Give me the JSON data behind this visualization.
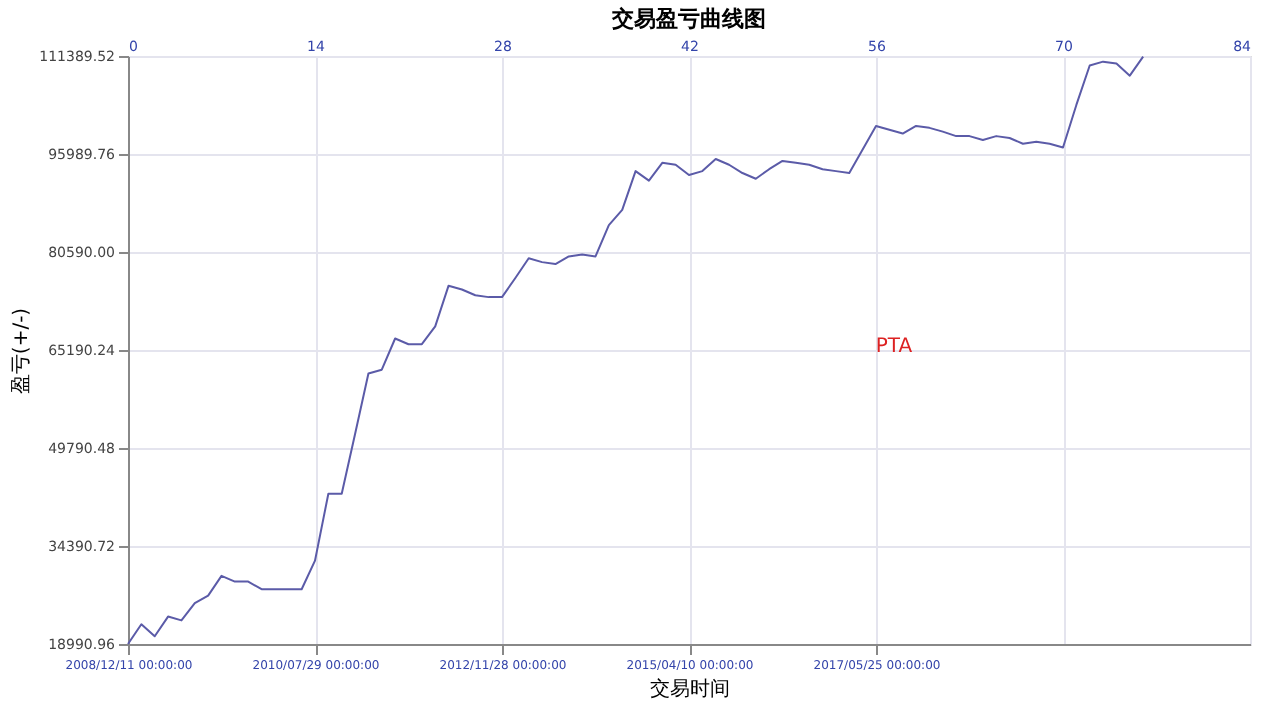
{
  "chart_data": {
    "type": "line",
    "title": "交易盈亏曲线图",
    "xlabel": "交易时间",
    "ylabel": "盈亏(+/-)",
    "categories": [
      "2008/12/11 00:00:00",
      null,
      null,
      null,
      null,
      null,
      null,
      null,
      null,
      null,
      null,
      null,
      null,
      null,
      "2010/07/29 00:00:00",
      null,
      null,
      null,
      null,
      null,
      null,
      null,
      null,
      null,
      null,
      null,
      null,
      null,
      "2012/11/28 00:00:00",
      null,
      null,
      null,
      null,
      null,
      null,
      null,
      null,
      null,
      null,
      null,
      null,
      null,
      "2015/04/10 00:00:00",
      null,
      null,
      null,
      null,
      null,
      null,
      null,
      null,
      null,
      null,
      null,
      null,
      null,
      "2017/05/25 00:00:00",
      null,
      null,
      null,
      null,
      null,
      null,
      null,
      null,
      null,
      null,
      null,
      null,
      null,
      null,
      null,
      null,
      null,
      null,
      null,
      null,
      null,
      null,
      null,
      null,
      null,
      null,
      null,
      null
    ],
    "series": [
      {
        "color": "#5b5ba8",
        "values": [
          19000,
          22100,
          20200,
          23300,
          22700,
          25400,
          26600,
          29700,
          28800,
          28800,
          27600,
          27600,
          27600,
          27600,
          32100,
          42600,
          42600,
          52000,
          61500,
          62100,
          67000,
          66100,
          66100,
          68900,
          75300,
          74700,
          73800,
          73500,
          73500,
          76500,
          79600,
          79000,
          78700,
          79900,
          80200,
          79900,
          84800,
          87200,
          93300,
          91800,
          94600,
          94300,
          92700,
          93300,
          95200,
          94300,
          93000,
          92100,
          93600,
          94900,
          94600,
          94300,
          93600,
          93300,
          93000,
          96700,
          100400,
          99800,
          99200,
          100400,
          100100,
          99500,
          98800,
          98800,
          98200,
          98800,
          98500,
          97600,
          97900,
          97600,
          97000,
          103700,
          109900,
          110500,
          110200,
          108300,
          111300,
          null,
          null,
          null,
          null,
          null,
          null,
          null,
          null
        ]
      }
    ],
    "x2lim": [
      0,
      84
    ],
    "x2ticks": [
      0,
      14,
      28,
      42,
      56,
      70,
      84
    ],
    "ylim": [
      18990.96,
      111389.52
    ],
    "yticks": [
      {
        "value": 18990.96,
        "label": "18990.96"
      },
      {
        "value": 34390.72,
        "label": "34390.72"
      },
      {
        "value": 49790.48,
        "label": "49790.48"
      },
      {
        "value": 65190.24,
        "label": "65190.24"
      },
      {
        "value": 80590.0,
        "label": "80590.00"
      },
      {
        "value": 95989.76,
        "label": "95989.76"
      },
      {
        "value": 111389.52,
        "label": "111389.52"
      }
    ],
    "grid": true,
    "marker": "none",
    "line_style": "solid",
    "annotations": [
      "PTA"
    ]
  }
}
